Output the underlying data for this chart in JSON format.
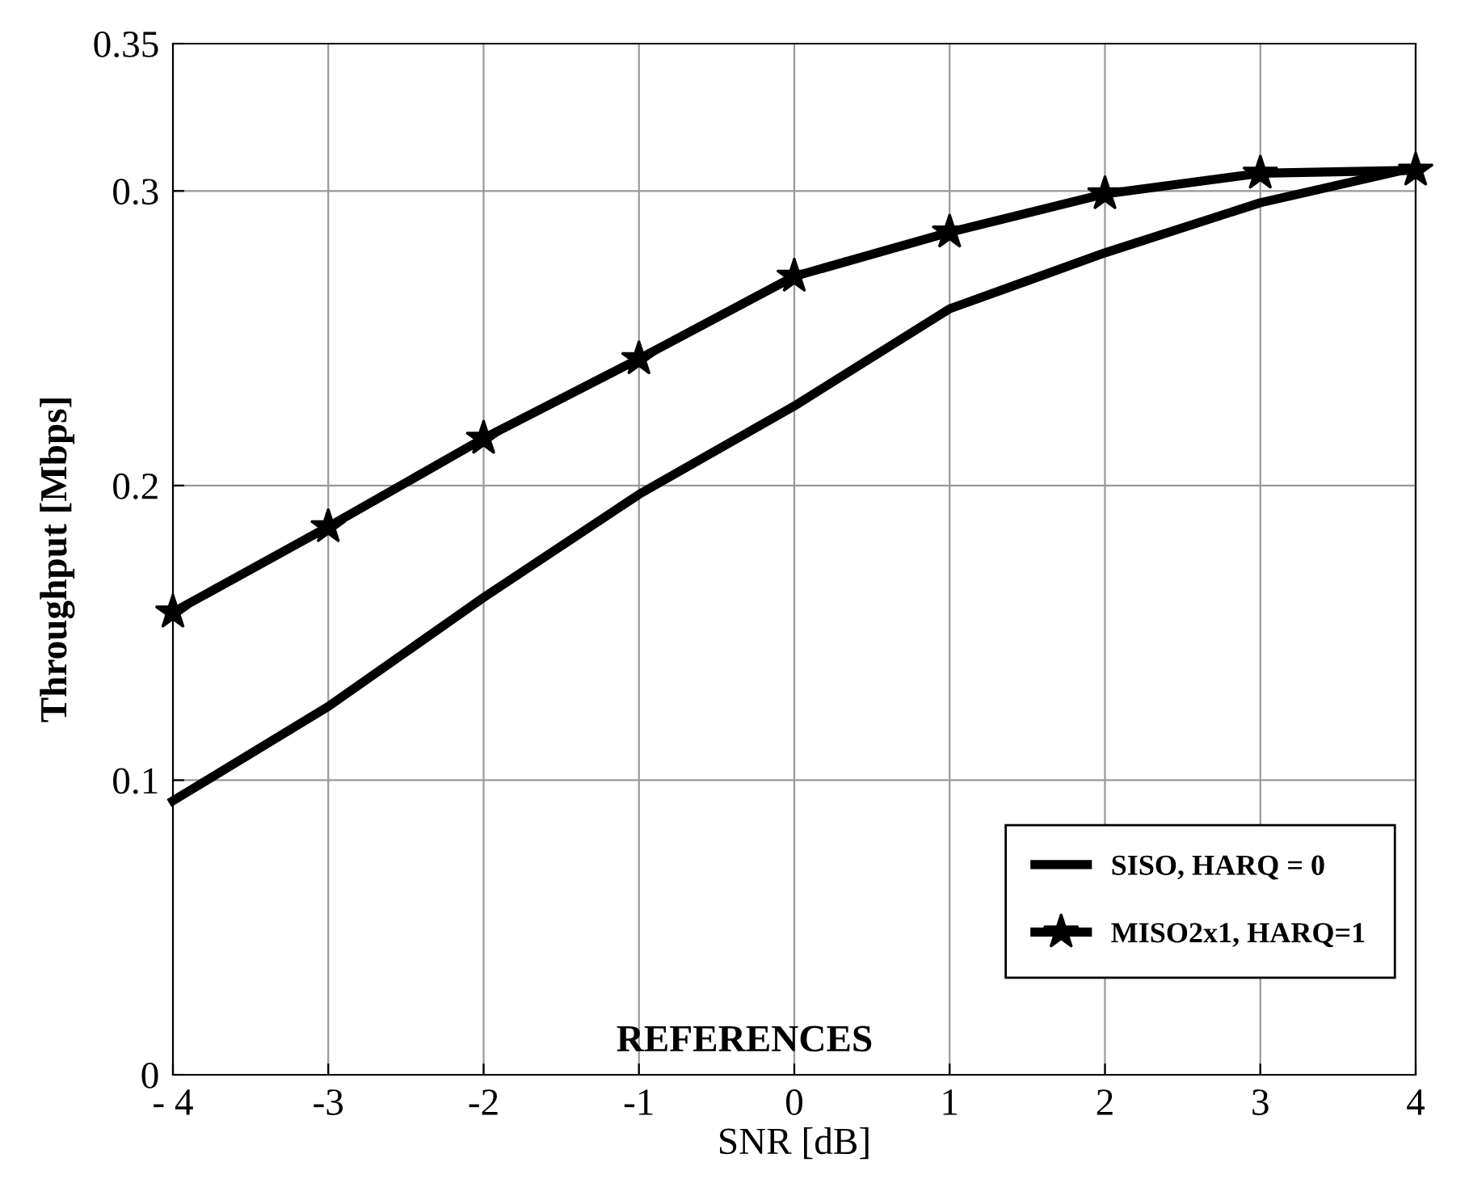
{
  "chart_data": {
    "type": "line",
    "xlabel": "SNR [dB]",
    "ylabel": "Throughput [Mbps]",
    "annotations": [
      "REFERENCES"
    ],
    "x": [
      -4,
      -3,
      -2,
      -1,
      0,
      1,
      2,
      3,
      4
    ],
    "series": [
      {
        "name": "SISO, HARQ = 0",
        "color": "#000000",
        "marker": "none",
        "values": [
          0.093,
          0.125,
          0.162,
          0.197,
          0.227,
          0.26,
          0.279,
          0.296,
          0.308
        ]
      },
      {
        "name": "MISO2x1, HARQ=1",
        "color": "#000000",
        "marker": "star",
        "values": [
          0.157,
          0.186,
          0.216,
          0.243,
          0.271,
          0.286,
          0.299,
          0.306,
          0.307
        ]
      }
    ],
    "xlim": [
      -4,
      4
    ],
    "xticks": [
      {
        "value": -4,
        "label": "- 4"
      },
      -3,
      -2,
      -1,
      0,
      1,
      2,
      3,
      4
    ],
    "ylim": [
      0,
      0.35
    ],
    "yticks": [
      0,
      0.1,
      0.2,
      0.3,
      0.35
    ],
    "grid": true,
    "legend": "bottom right",
    "line_style": "solid"
  }
}
